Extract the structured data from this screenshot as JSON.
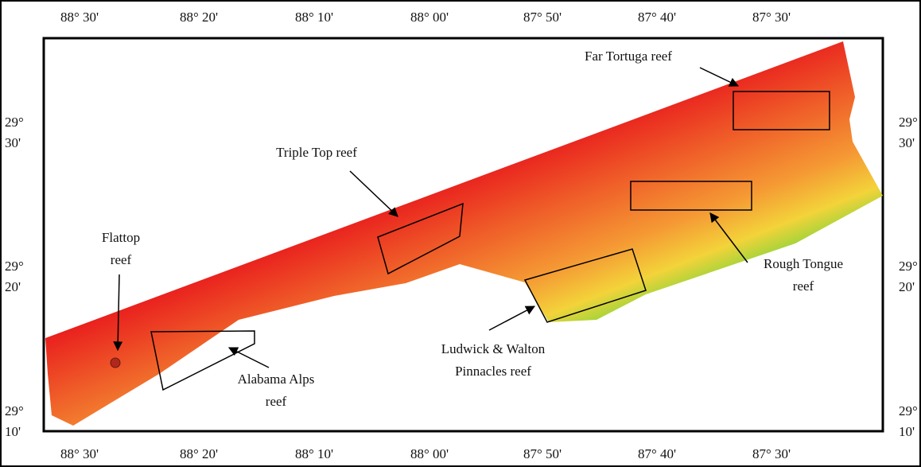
{
  "map": {
    "lon_labels": [
      "88° 30'",
      "88° 20'",
      "88° 10'",
      "88° 00'",
      "87° 50'",
      "87° 40'",
      "87° 30'"
    ],
    "lat_labels": [
      {
        "deg": "29°",
        "min": "30'"
      },
      {
        "deg": "29°",
        "min": "20'"
      },
      {
        "deg": "29°",
        "min": "10'"
      }
    ],
    "annotations": [
      {
        "lines": [
          "Far Tortuga reef"
        ]
      },
      {
        "lines": [
          "Triple Top reef"
        ]
      },
      {
        "lines": [
          "Flattop",
          "reef"
        ]
      },
      {
        "lines": [
          "Alabama Alps",
          "reef"
        ]
      },
      {
        "lines": [
          "Ludwick & Walton",
          "Pinnacles reef"
        ]
      },
      {
        "lines": [
          "Rough Tongue",
          "reef"
        ]
      }
    ]
  }
}
